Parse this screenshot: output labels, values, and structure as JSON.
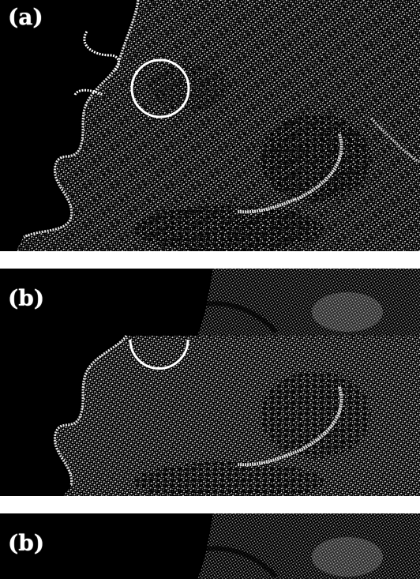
{
  "panels": [
    {
      "id": "a",
      "label": "(a)"
    },
    {
      "id": "b1",
      "label": "(b)"
    },
    {
      "id": "b2",
      "label": "(b)"
    }
  ],
  "colors": {
    "background": "#000000",
    "speckle": "#ffffff",
    "separator": "#ffffff"
  }
}
